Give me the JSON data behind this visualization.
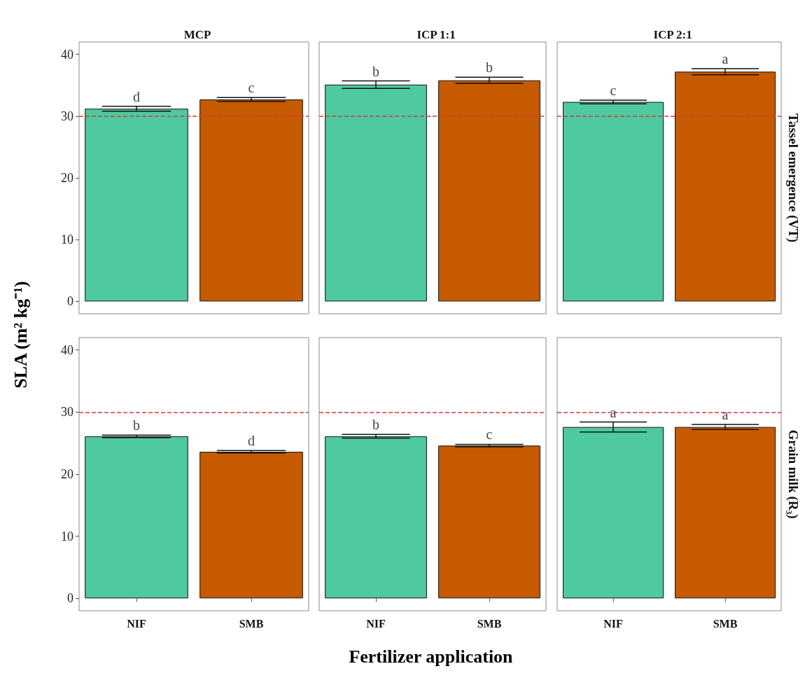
{
  "chart_data": [
    {
      "type": "bar",
      "title": "MCP",
      "ylabel": "SLA (m² kg⁻¹)",
      "categories": [
        "NIF",
        "SMB"
      ],
      "values": [
        31.2,
        32.7
      ],
      "errors": [
        0.4,
        0.3
      ],
      "colors": [
        "#4ec9a0",
        "#c55a00"
      ],
      "ylim": [
        -2,
        42
      ],
      "yticks": [
        0,
        10,
        20,
        30,
        40
      ],
      "grid": false,
      "tick_labels": "y",
      "ref_lines": [
        {
          "axis": "y",
          "value": 30,
          "color": "#d9383a",
          "line_style": "dashed"
        }
      ],
      "annotations": [
        {
          "text": "d",
          "x": "NIF",
          "y": 31.6
        },
        {
          "text": "c",
          "x": "SMB",
          "y": 33.0
        }
      ]
    },
    {
      "type": "bar",
      "title": "ICP 1:1",
      "categories": [
        "NIF",
        "SMB"
      ],
      "values": [
        35.1,
        35.8
      ],
      "errors": [
        0.6,
        0.5
      ],
      "colors": [
        "#4ec9a0",
        "#c55a00"
      ],
      "ylim": [
        -2,
        42
      ],
      "yticks": [
        0,
        10,
        20,
        30,
        40
      ],
      "grid": false,
      "tick_labels": false,
      "ref_lines": [
        {
          "axis": "y",
          "value": 30,
          "color": "#d9383a",
          "line_style": "dashed"
        }
      ],
      "annotations": [
        {
          "text": "b",
          "x": "NIF",
          "y": 35.7
        },
        {
          "text": "b",
          "x": "SMB",
          "y": 36.3
        }
      ]
    },
    {
      "type": "bar",
      "title": "ICP 2:1",
      "y2label": "Tassel emergence (VT)",
      "categories": [
        "NIF",
        "SMB"
      ],
      "values": [
        32.3,
        37.2
      ],
      "errors": [
        0.3,
        0.5
      ],
      "colors": [
        "#4ec9a0",
        "#c55a00"
      ],
      "ylim": [
        -2,
        42
      ],
      "yticks": [
        0,
        10,
        20,
        30,
        40
      ],
      "grid": false,
      "tick_labels": false,
      "ref_lines": [
        {
          "axis": "y",
          "value": 30,
          "color": "#d9383a",
          "line_style": "dashed"
        }
      ],
      "annotations": [
        {
          "text": "c",
          "x": "NIF",
          "y": 32.6
        },
        {
          "text": "a",
          "x": "SMB",
          "y": 37.7
        }
      ]
    },
    {
      "type": "bar",
      "categories": [
        "NIF",
        "SMB"
      ],
      "values": [
        26.1,
        23.6
      ],
      "errors": [
        0.2,
        0.2
      ],
      "colors": [
        "#4ec9a0",
        "#c55a00"
      ],
      "ylim": [
        -2,
        42
      ],
      "yticks": [
        0,
        10,
        20,
        30,
        40
      ],
      "grid": false,
      "ref_lines": [
        {
          "axis": "y",
          "value": 30,
          "color": "#d9383a",
          "line_style": "dashed"
        }
      ],
      "annotations": [
        {
          "text": "b",
          "x": "NIF",
          "y": 26.3
        },
        {
          "text": "d",
          "x": "SMB",
          "y": 23.8
        }
      ]
    },
    {
      "type": "bar",
      "xlabel": "Fertilizer application",
      "categories": [
        "NIF",
        "SMB"
      ],
      "values": [
        26.1,
        24.6
      ],
      "errors": [
        0.3,
        0.2
      ],
      "colors": [
        "#4ec9a0",
        "#c55a00"
      ],
      "ylim": [
        -2,
        42
      ],
      "yticks": [
        0,
        10,
        20,
        30,
        40
      ],
      "grid": false,
      "tick_labels": "x",
      "ref_lines": [
        {
          "axis": "y",
          "value": 30,
          "color": "#d9383a",
          "line_style": "dashed"
        }
      ],
      "annotations": [
        {
          "text": "b",
          "x": "NIF",
          "y": 26.4
        },
        {
          "text": "c",
          "x": "SMB",
          "y": 24.8
        }
      ]
    },
    {
      "type": "bar",
      "y2label": "Grain milk (R₃)",
      "categories": [
        "NIF",
        "SMB"
      ],
      "values": [
        27.6,
        27.6
      ],
      "errors": [
        0.8,
        0.4
      ],
      "colors": [
        "#4ec9a0",
        "#c55a00"
      ],
      "ylim": [
        -2,
        42
      ],
      "yticks": [
        0,
        10,
        20,
        30,
        40
      ],
      "grid": false,
      "tick_labels": "x",
      "ref_lines": [
        {
          "axis": "y",
          "value": 30,
          "color": "#d9383a",
          "line_style": "dashed"
        }
      ],
      "annotations": [
        {
          "text": "a",
          "x": "NIF",
          "y": 28.4
        },
        {
          "text": "a",
          "x": "SMB",
          "y": 28.0
        }
      ]
    }
  ]
}
